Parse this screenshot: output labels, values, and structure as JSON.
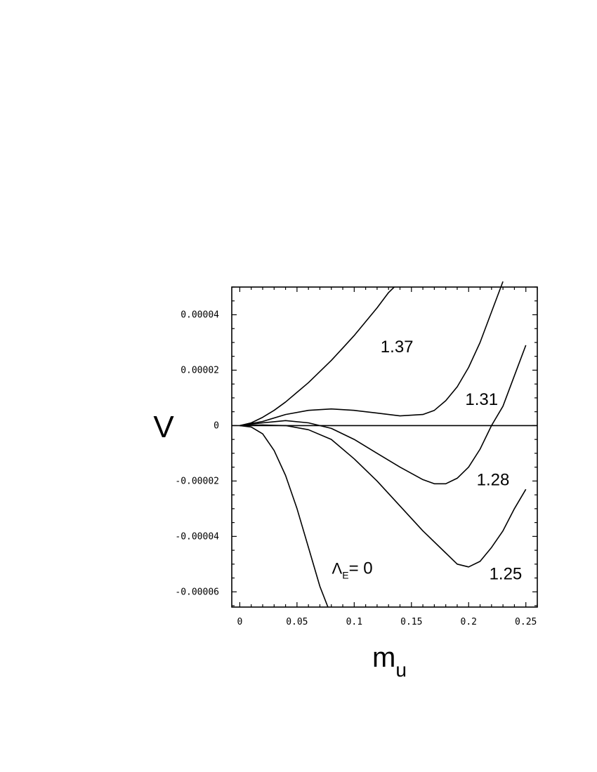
{
  "chart_data": {
    "type": "line",
    "xlabel": "m",
    "xlabel_sub": "u",
    "ylabel": "V",
    "xlim": [
      -0.007,
      0.26
    ],
    "ylim": [
      -6.55e-05,
      5e-05
    ],
    "x_ticks": [
      0,
      0.05,
      0.1,
      0.15,
      0.2,
      0.25
    ],
    "x_tick_labels": [
      "0",
      "0.05",
      "0.1",
      "0.15",
      "0.2",
      "0.25"
    ],
    "y_ticks": [
      -6e-05,
      -4e-05,
      -2e-05,
      0,
      2e-05,
      4e-05
    ],
    "y_tick_labels": [
      "-0.00006",
      "-0.00004",
      "-0.00002",
      "0",
      "0.00002",
      "0.00004"
    ],
    "zero_line": true,
    "grid": false,
    "series": [
      {
        "name": "= 0",
        "name_prefix": "Λ",
        "name_sub": "E",
        "label_at": [
          0.0805,
          -5.35e-05
        ],
        "points": [
          [
            0,
            0
          ],
          [
            0.01,
            -5e-07
          ],
          [
            0.02,
            -3e-06
          ],
          [
            0.03,
            -9e-06
          ],
          [
            0.04,
            -1.8e-05
          ],
          [
            0.05,
            -3e-05
          ],
          [
            0.06,
            -4.4e-05
          ],
          [
            0.07,
            -5.8e-05
          ],
          [
            0.077,
            -6.55e-05
          ]
        ]
      },
      {
        "name": "1.25",
        "label_at": [
          0.218,
          -5.55e-05
        ],
        "points": [
          [
            0,
            0
          ],
          [
            0.02,
            2e-07
          ],
          [
            0.04,
            0
          ],
          [
            0.06,
            -1.5e-06
          ],
          [
            0.08,
            -5e-06
          ],
          [
            0.1,
            -1.2e-05
          ],
          [
            0.12,
            -2e-05
          ],
          [
            0.14,
            -2.9e-05
          ],
          [
            0.16,
            -3.8e-05
          ],
          [
            0.18,
            -4.6e-05
          ],
          [
            0.19,
            -5e-05
          ],
          [
            0.2,
            -5.1e-05
          ],
          [
            0.21,
            -4.9e-05
          ],
          [
            0.22,
            -4.4e-05
          ],
          [
            0.23,
            -3.8e-05
          ],
          [
            0.24,
            -3e-05
          ],
          [
            0.25,
            -2.3e-05
          ]
        ]
      },
      {
        "name": "1.28",
        "label_at": [
          0.207,
          -2.15e-05
        ],
        "points": [
          [
            0,
            0
          ],
          [
            0.02,
            1e-06
          ],
          [
            0.04,
            1.8e-06
          ],
          [
            0.06,
            1e-06
          ],
          [
            0.08,
            -1e-06
          ],
          [
            0.1,
            -5e-06
          ],
          [
            0.12,
            -1e-05
          ],
          [
            0.14,
            -1.5e-05
          ],
          [
            0.16,
            -1.95e-05
          ],
          [
            0.17,
            -2.1e-05
          ],
          [
            0.18,
            -2.1e-05
          ],
          [
            0.19,
            -1.9e-05
          ],
          [
            0.2,
            -1.5e-05
          ],
          [
            0.21,
            -8.5e-06
          ],
          [
            0.22,
            0
          ],
          [
            0.23,
            7e-06
          ],
          [
            0.24,
            1.8e-05
          ],
          [
            0.25,
            2.9e-05
          ]
        ]
      },
      {
        "name": "1.31",
        "label_at": [
          0.197,
          7.5e-06
        ],
        "points": [
          [
            0,
            0
          ],
          [
            0.02,
            1.5e-06
          ],
          [
            0.04,
            4e-06
          ],
          [
            0.06,
            5.5e-06
          ],
          [
            0.08,
            6e-06
          ],
          [
            0.1,
            5.5e-06
          ],
          [
            0.12,
            4.5e-06
          ],
          [
            0.14,
            3.5e-06
          ],
          [
            0.16,
            4e-06
          ],
          [
            0.17,
            5.5e-06
          ],
          [
            0.18,
            9e-06
          ],
          [
            0.19,
            1.4e-05
          ],
          [
            0.2,
            2.1e-05
          ],
          [
            0.21,
            3e-05
          ],
          [
            0.22,
            4.1e-05
          ],
          [
            0.23,
            5.2e-05
          ]
        ]
      },
      {
        "name": "1.37",
        "label_at": [
          0.123,
          2.65e-05
        ],
        "points": [
          [
            0,
            0
          ],
          [
            0.01,
            1e-06
          ],
          [
            0.02,
            3e-06
          ],
          [
            0.03,
            5.5e-06
          ],
          [
            0.04,
            8.5e-06
          ],
          [
            0.05,
            1.2e-05
          ],
          [
            0.06,
            1.55e-05
          ],
          [
            0.07,
            1.95e-05
          ],
          [
            0.08,
            2.35e-05
          ],
          [
            0.09,
            2.8e-05
          ],
          [
            0.1,
            3.25e-05
          ],
          [
            0.11,
            3.75e-05
          ],
          [
            0.12,
            4.25e-05
          ],
          [
            0.13,
            4.8e-05
          ],
          [
            0.135,
            5e-05
          ]
        ]
      }
    ]
  }
}
